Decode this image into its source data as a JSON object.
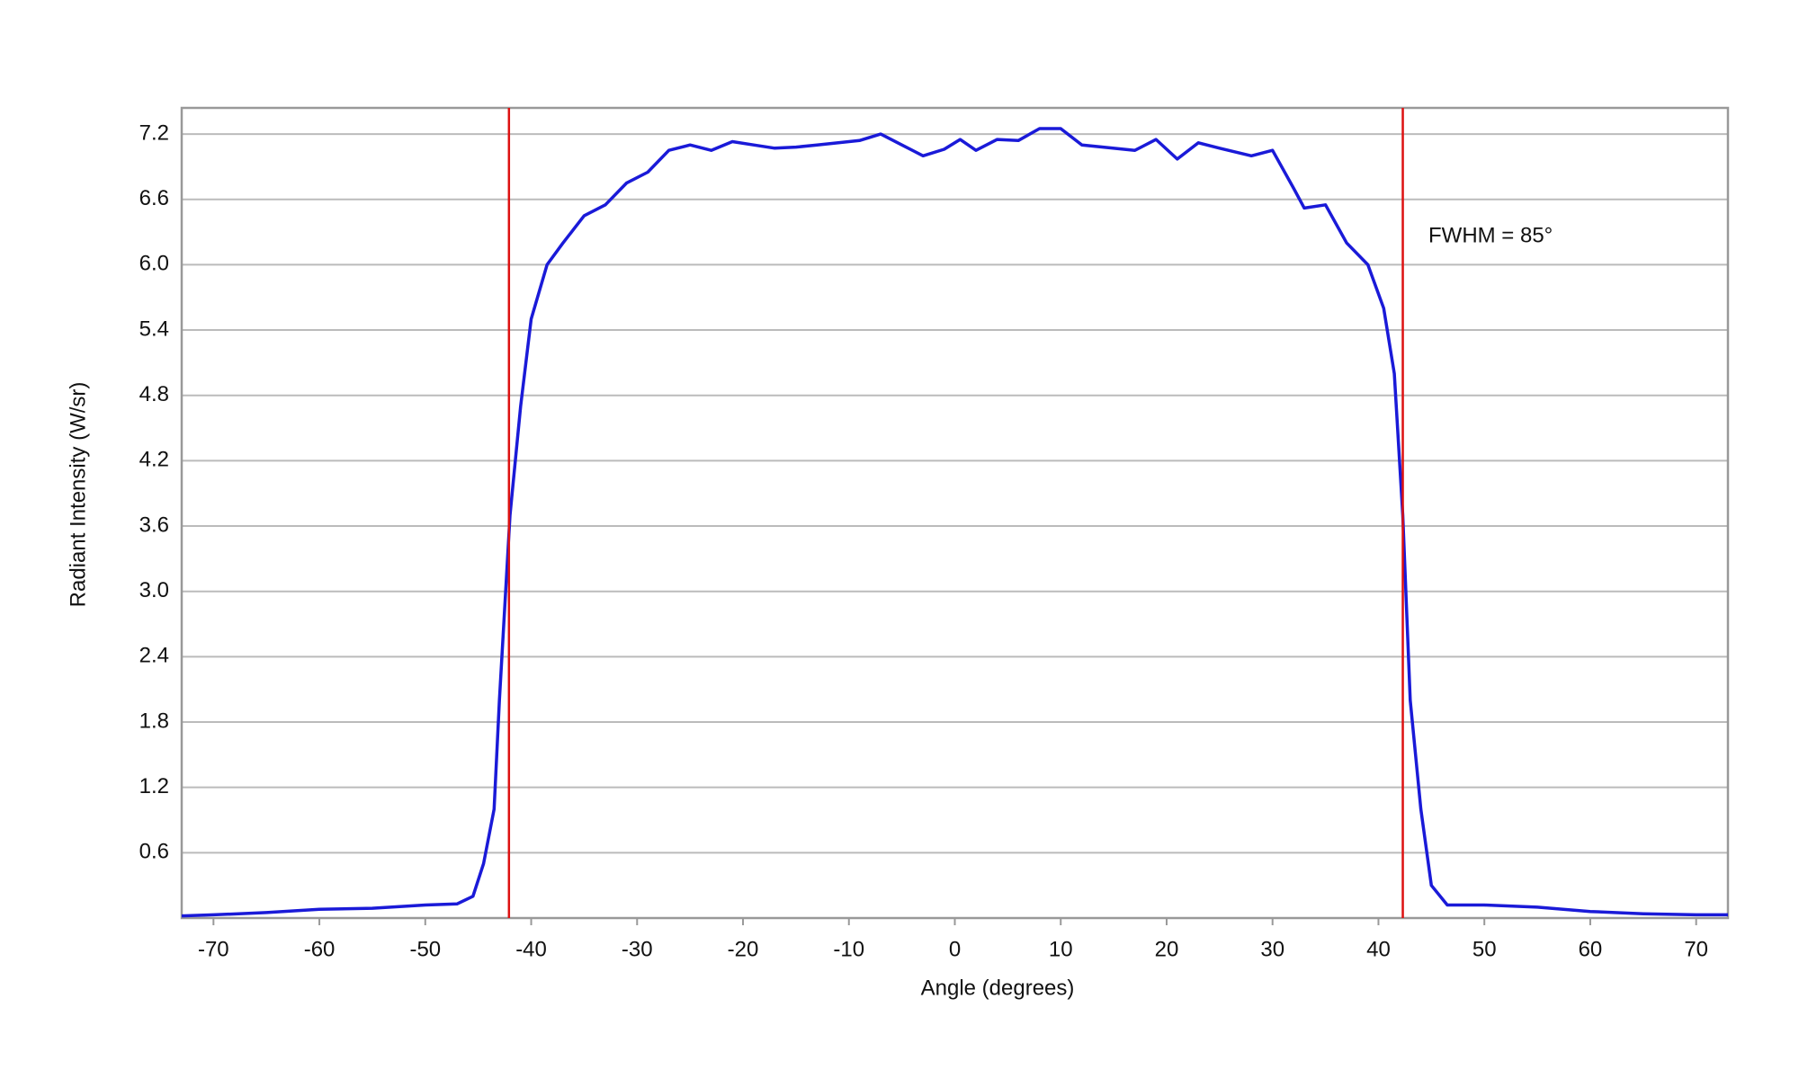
{
  "chart_data": {
    "type": "line",
    "x_label": "Angle (degrees)",
    "y_label": "Radiant Intensity (W/sr)",
    "annotation": "FWHM = 85°",
    "xlim": [
      -73,
      73
    ],
    "ylim": [
      0,
      7.44
    ],
    "xticks": [
      -70,
      -60,
      -50,
      -40,
      -30,
      -20,
      -10,
      0,
      10,
      20,
      30,
      40,
      50,
      60,
      70
    ],
    "yticks": [
      0.6,
      1.2,
      1.8,
      2.4,
      {
        "value": 3,
        "label": "3.0"
      },
      3.6,
      4.2,
      4.8,
      5.4,
      {
        "value": 6,
        "label": "6.0"
      },
      6.6,
      7.2
    ],
    "grid": true,
    "vlines": {
      "color": "#dd1111",
      "x": [
        -42.1,
        42.3
      ]
    },
    "x": [
      -73,
      -70,
      -65,
      -60,
      -55,
      -50,
      -47,
      -45.5,
      -44.5,
      -43.5,
      -43,
      -42,
      -41,
      -40,
      -38.5,
      -37,
      -35,
      -33,
      -31,
      -29,
      -27,
      -25,
      -23,
      -21,
      -19,
      -17,
      -15,
      -13,
      -11,
      -9,
      -7,
      -5,
      -3,
      -1,
      0.5,
      2,
      4,
      6,
      8,
      10,
      12,
      14,
      17,
      19,
      21,
      23,
      25,
      28,
      30,
      32,
      33,
      35,
      37,
      39,
      40.5,
      41.5,
      42.3,
      43,
      44,
      45,
      46.5,
      50,
      55,
      60,
      65,
      70,
      73
    ],
    "series": [
      {
        "color": "#1a1ad8",
        "values": [
          0.02,
          0.03,
          0.05,
          0.08,
          0.09,
          0.12,
          0.13,
          0.2,
          0.5,
          1.0,
          2.0,
          3.7,
          4.7,
          5.5,
          6.0,
          6.2,
          6.45,
          6.55,
          6.75,
          6.85,
          7.05,
          7.1,
          7.05,
          7.13,
          7.1,
          7.07,
          7.08,
          7.1,
          7.12,
          7.14,
          7.2,
          7.1,
          7.0,
          7.06,
          7.15,
          7.05,
          7.15,
          7.14,
          7.25,
          7.25,
          7.1,
          7.08,
          7.05,
          7.15,
          6.97,
          7.12,
          7.07,
          7.0,
          7.05,
          6.7,
          6.52,
          6.55,
          6.2,
          6.0,
          5.6,
          5.0,
          3.7,
          2.0,
          1.0,
          0.3,
          0.12,
          0.12,
          0.1,
          0.06,
          0.04,
          0.03,
          0.03
        ]
      }
    ]
  }
}
